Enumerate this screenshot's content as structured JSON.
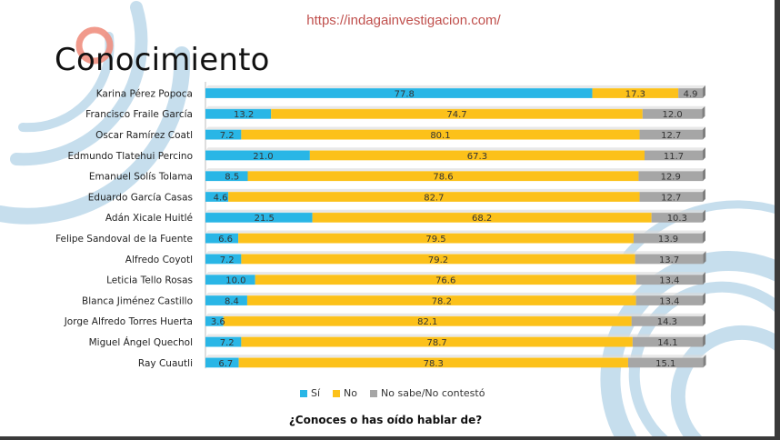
{
  "header": {
    "url": "https://indagainvestigacion.com/",
    "title": "Conocimiento"
  },
  "footer": {
    "question": "¿Conoces o has oído hablar de?"
  },
  "colors": {
    "si": "#29b6e6",
    "no": "#fcc11a",
    "ns": "#a6a6a6",
    "deco_blue": "#bcd8ea",
    "deco_red": "#ef8f7f"
  },
  "chart_data": {
    "type": "bar",
    "orientation": "horizontal",
    "stacked": true,
    "categories": [
      "Karina Pérez Popoca",
      "Francisco Fraile García",
      "Oscar Ramírez Coatl",
      "Edmundo Tlatehui Percino",
      "Emanuel Solís Tolama",
      "Eduardo García Casas",
      "Adán Xicale Huitlé",
      "Felipe Sandoval de la Fuente",
      "Alfredo Coyotl",
      "Leticia Tello Rosas",
      "Blanca Jiménez Castillo",
      "Jorge Alfredo Torres Huerta",
      "Miguel Ángel Quechol",
      "Ray Cuautli"
    ],
    "series": [
      {
        "name": "Sí",
        "values": [
          77.8,
          13.2,
          7.2,
          21.0,
          8.5,
          4.6,
          21.5,
          6.6,
          7.2,
          10.0,
          8.4,
          3.6,
          7.2,
          6.7
        ]
      },
      {
        "name": "No",
        "values": [
          17.3,
          74.7,
          80.1,
          67.3,
          78.6,
          82.7,
          68.2,
          79.5,
          79.2,
          76.6,
          78.2,
          82.1,
          78.7,
          78.3
        ]
      },
      {
        "name": "No sabe/No contestó",
        "values": [
          4.9,
          12.0,
          12.7,
          11.7,
          12.9,
          12.7,
          10.3,
          13.9,
          13.7,
          13.4,
          13.4,
          14.3,
          14.1,
          15.1
        ]
      }
    ],
    "xlim": [
      0,
      100
    ],
    "legend": "bottom"
  }
}
